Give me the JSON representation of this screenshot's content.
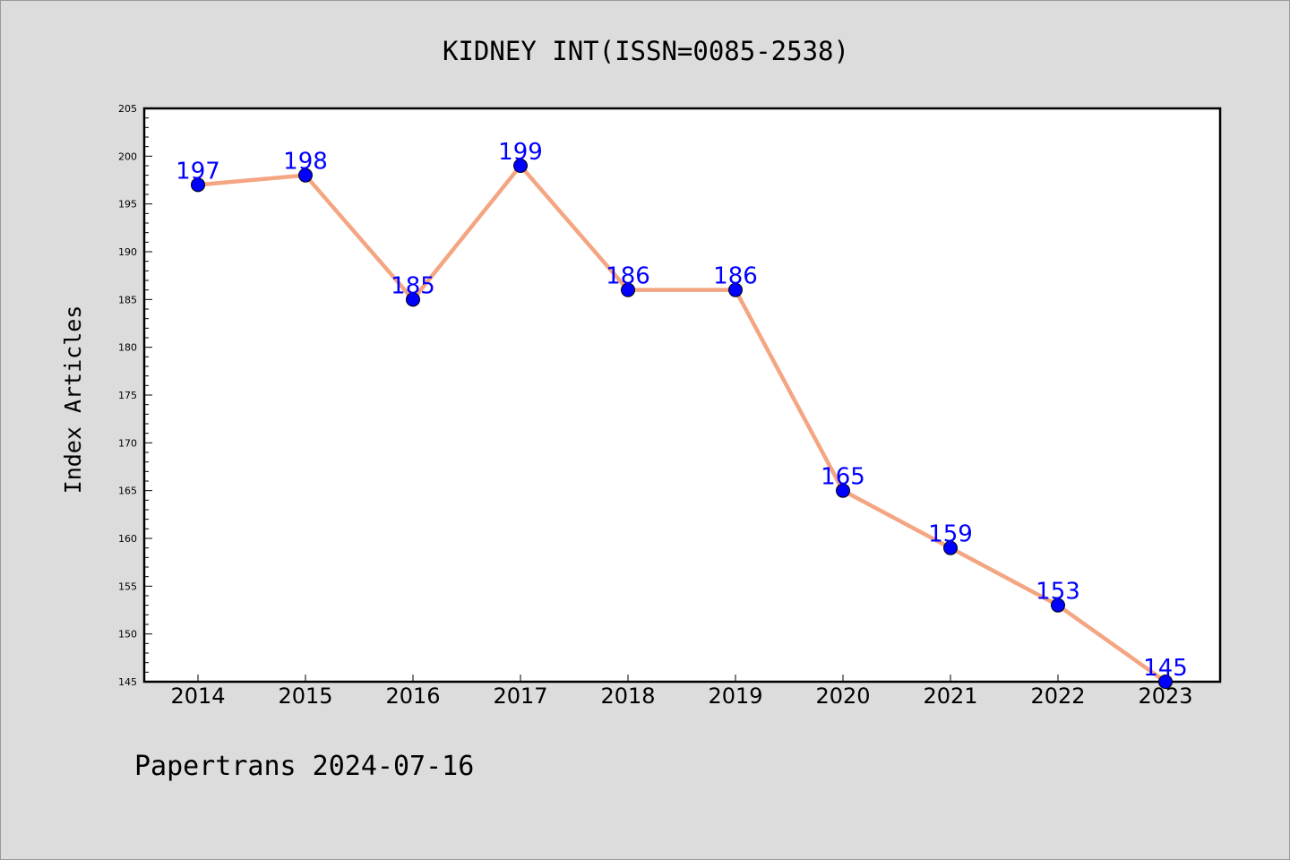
{
  "chart_data": {
    "type": "line",
    "title": "KIDNEY INT(ISSN=0085-2538)",
    "xlabel": "",
    "ylabel": "Index Articles",
    "categories": [
      "2014",
      "2015",
      "2016",
      "2017",
      "2018",
      "2019",
      "2020",
      "2021",
      "2022",
      "2023"
    ],
    "series": [
      {
        "values": [
          197,
          198,
          185,
          199,
          186,
          186,
          165,
          159,
          153,
          145
        ]
      }
    ],
    "ylim": [
      145,
      205
    ],
    "y_ticks": [
      145,
      150,
      155,
      160,
      165,
      170,
      175,
      180,
      185,
      190,
      195,
      200,
      205
    ],
    "grid": false,
    "line_color": "#f4a582",
    "marker_color": "#0000ff",
    "label_color": "#0000ff"
  },
  "footer": "Papertrans 2024-07-16"
}
